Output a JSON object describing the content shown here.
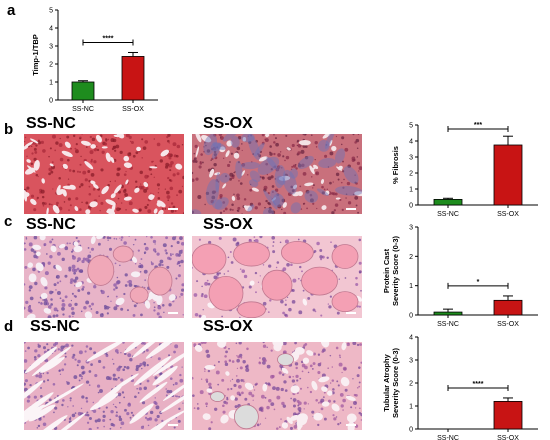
{
  "panels": {
    "a": "a",
    "b": "b",
    "c": "c",
    "d": "d"
  },
  "images": {
    "b_left": "SS-NC",
    "b_right": "SS-OX",
    "c_left": "SS-NC",
    "c_right": "SS-OX",
    "d_left": "SS-NC",
    "d_right": "SS-OX"
  },
  "colors": {
    "nc": "#1e8c1e",
    "ox": "#c81414",
    "trichrome_bg": "#d9545e",
    "he_bg": "#e8b4c8"
  },
  "chart_data": [
    {
      "id": "timp",
      "type": "bar",
      "categories": [
        "SS-NC",
        "SS-OX"
      ],
      "values": [
        1.0,
        2.42
      ],
      "errors": [
        0.07,
        0.22
      ],
      "ylabel": "Timp-1/TBP",
      "ylim": [
        0,
        5
      ],
      "yticks": [
        "0",
        "1",
        "2",
        "3",
        "4",
        "5"
      ],
      "significance": "****"
    },
    {
      "id": "fibrosis",
      "type": "bar",
      "categories": [
        "SS-NC",
        "SS-OX"
      ],
      "values": [
        0.35,
        3.75
      ],
      "errors": [
        0.07,
        0.55
      ],
      "ylabel": "% Fibrosis",
      "ylim": [
        0,
        5
      ],
      "yticks": [
        "0",
        "1",
        "2",
        "3",
        "4",
        "5"
      ],
      "significance": "***"
    },
    {
      "id": "protein_cast",
      "type": "bar",
      "categories": [
        "SS-NC",
        "SS-OX"
      ],
      "values": [
        0.1,
        0.5
      ],
      "errors": [
        0.1,
        0.15
      ],
      "ylabel": "Protein Cast\nSeverity Score (0-3)",
      "ylim": [
        0,
        3
      ],
      "yticks": [
        "0",
        "1",
        "2",
        "3"
      ],
      "significance": "*"
    },
    {
      "id": "tubular_atrophy",
      "type": "bar",
      "categories": [
        "SS-NC",
        "SS-OX"
      ],
      "values": [
        0.0,
        1.2
      ],
      "errors": [
        0.0,
        0.15
      ],
      "ylabel": "Tubular Atrophy\nSeverity Score (0-3)",
      "ylim": [
        0,
        4
      ],
      "yticks": [
        "0",
        "1",
        "2",
        "3",
        "4"
      ],
      "significance": "****"
    }
  ]
}
